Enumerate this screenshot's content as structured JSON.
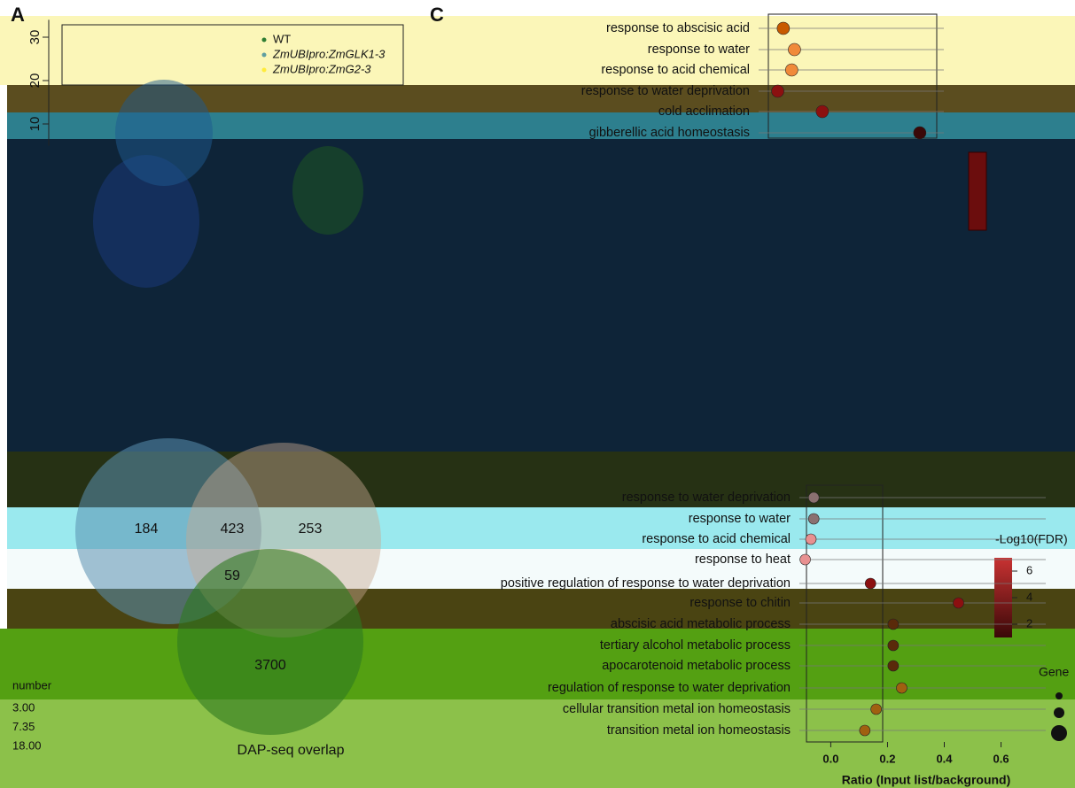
{
  "panels": {
    "a": "A",
    "c": "C"
  },
  "chart_data": [
    {
      "type": "scatter",
      "ylim": [
        5,
        34
      ],
      "yticks": [
        10,
        20,
        30
      ],
      "series": [
        {
          "name": "WT",
          "color": "#2e7d32"
        },
        {
          "name": "ZmUBIpro:ZmGLK1-3",
          "color": "#5f9ea0"
        },
        {
          "name": "ZmUBIpro:ZmG2-3",
          "color": "#ffeb3b"
        }
      ],
      "size_legend": {
        "title": "number",
        "labels": [
          "3.00",
          "7.35",
          "18.00"
        ]
      }
    },
    {
      "type": "venn",
      "title": "DAP-seq overlap",
      "values": [
        184,
        423,
        253,
        59,
        3700
      ]
    },
    {
      "type": "dot",
      "xlim": [
        0,
        0.7
      ],
      "categories": [
        "response to abscisic acid",
        "response to water",
        "response to acid chemical",
        "response to water deprivation",
        "cold acclimation",
        "gibberellic acid homeostasis"
      ],
      "values": [
        0.06,
        0.1,
        0.09,
        0.04,
        0.2,
        0.55
      ],
      "colors": [
        "#c85a00",
        "#f08a3a",
        "#f08a3a",
        "#8b1010",
        "#8b1010",
        "#3a0808"
      ]
    },
    {
      "type": "dot",
      "xlim": [
        -0.07,
        0.82
      ],
      "xlabel": "Ratio (Input list/background)",
      "xticks": [
        {
          "value": 0,
          "label": "0.0"
        },
        {
          "value": 0.2,
          "label": "0.2"
        },
        {
          "value": 0.4,
          "label": "0.4"
        },
        {
          "value": 0.6,
          "label": "0.6"
        }
      ],
      "categories": [
        "response to water deprivation",
        "response to water",
        "response to acid chemical",
        "response to heat",
        "positive regulation of response to water deprivation",
        "response to chitin",
        "abscisic acid metabolic process",
        "tertiary alcohol metabolic process",
        "apocarotenoid metabolic process",
        "regulation of response to water deprivation",
        "cellular transition metal ion homeostasis",
        "transition metal ion homeostasis"
      ],
      "values": [
        -0.06,
        -0.06,
        -0.07,
        -0.09,
        0.14,
        0.45,
        0.22,
        0.22,
        0.22,
        0.25,
        0.16,
        0.12
      ],
      "colors": [
        "#8a7070",
        "#8a7070",
        "#e89090",
        "#e89090",
        "#8b1010",
        "#8b1010",
        "#5a2a0a",
        "#5a2a0a",
        "#5a2a0a",
        "#a06010",
        "#a06010",
        "#a06010"
      ],
      "color_legend": {
        "title": "-Log10(FDR)",
        "ticks": [
          6,
          4,
          2
        ]
      },
      "size_legend_title": "Gene"
    }
  ]
}
